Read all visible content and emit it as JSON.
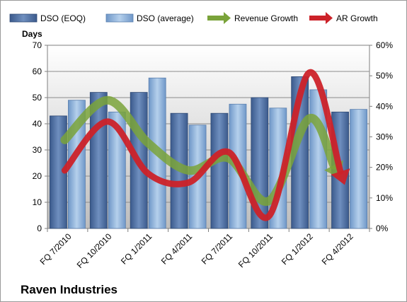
{
  "chart_data": {
    "type": "bar",
    "title": "",
    "company": "Raven Industries",
    "ylabel": "Days",
    "ylim": [
      0,
      70
    ],
    "yticks": [
      0,
      10,
      20,
      30,
      40,
      50,
      60,
      70
    ],
    "y2lim": [
      0,
      60
    ],
    "y2ticks": [
      "0%",
      "10%",
      "20%",
      "30%",
      "40%",
      "50%",
      "60%"
    ],
    "categories": [
      "FQ 7/2010",
      "FQ 10/2010",
      "FQ 1/2011",
      "FQ 4/2011",
      "FQ 7/2011",
      "FQ 10/2011",
      "FQ 1/2012",
      "FQ 4/2012"
    ],
    "series": [
      {
        "name": "DSO (EOQ)",
        "axis": "left",
        "kind": "bar",
        "color": "#4f6fa0",
        "values": [
          43,
          52,
          52,
          44,
          44,
          50,
          58,
          44.5
        ]
      },
      {
        "name": "DSO (average)",
        "axis": "left",
        "kind": "bar",
        "color": "#8fb3d9",
        "values": [
          49,
          44.5,
          57.5,
          39.5,
          47.5,
          46,
          53,
          45.5
        ]
      },
      {
        "name": "Revenue Growth",
        "axis": "right",
        "kind": "arrow",
        "color": "#7aa33a",
        "values": [
          29,
          42,
          28,
          19,
          23,
          9,
          36,
          18
        ]
      },
      {
        "name": "AR Growth",
        "axis": "right",
        "kind": "arrow",
        "color": "#cc2229",
        "values": [
          19,
          35,
          18,
          15,
          25,
          4,
          51,
          16
        ]
      }
    ],
    "grid": true,
    "legend": "top"
  }
}
